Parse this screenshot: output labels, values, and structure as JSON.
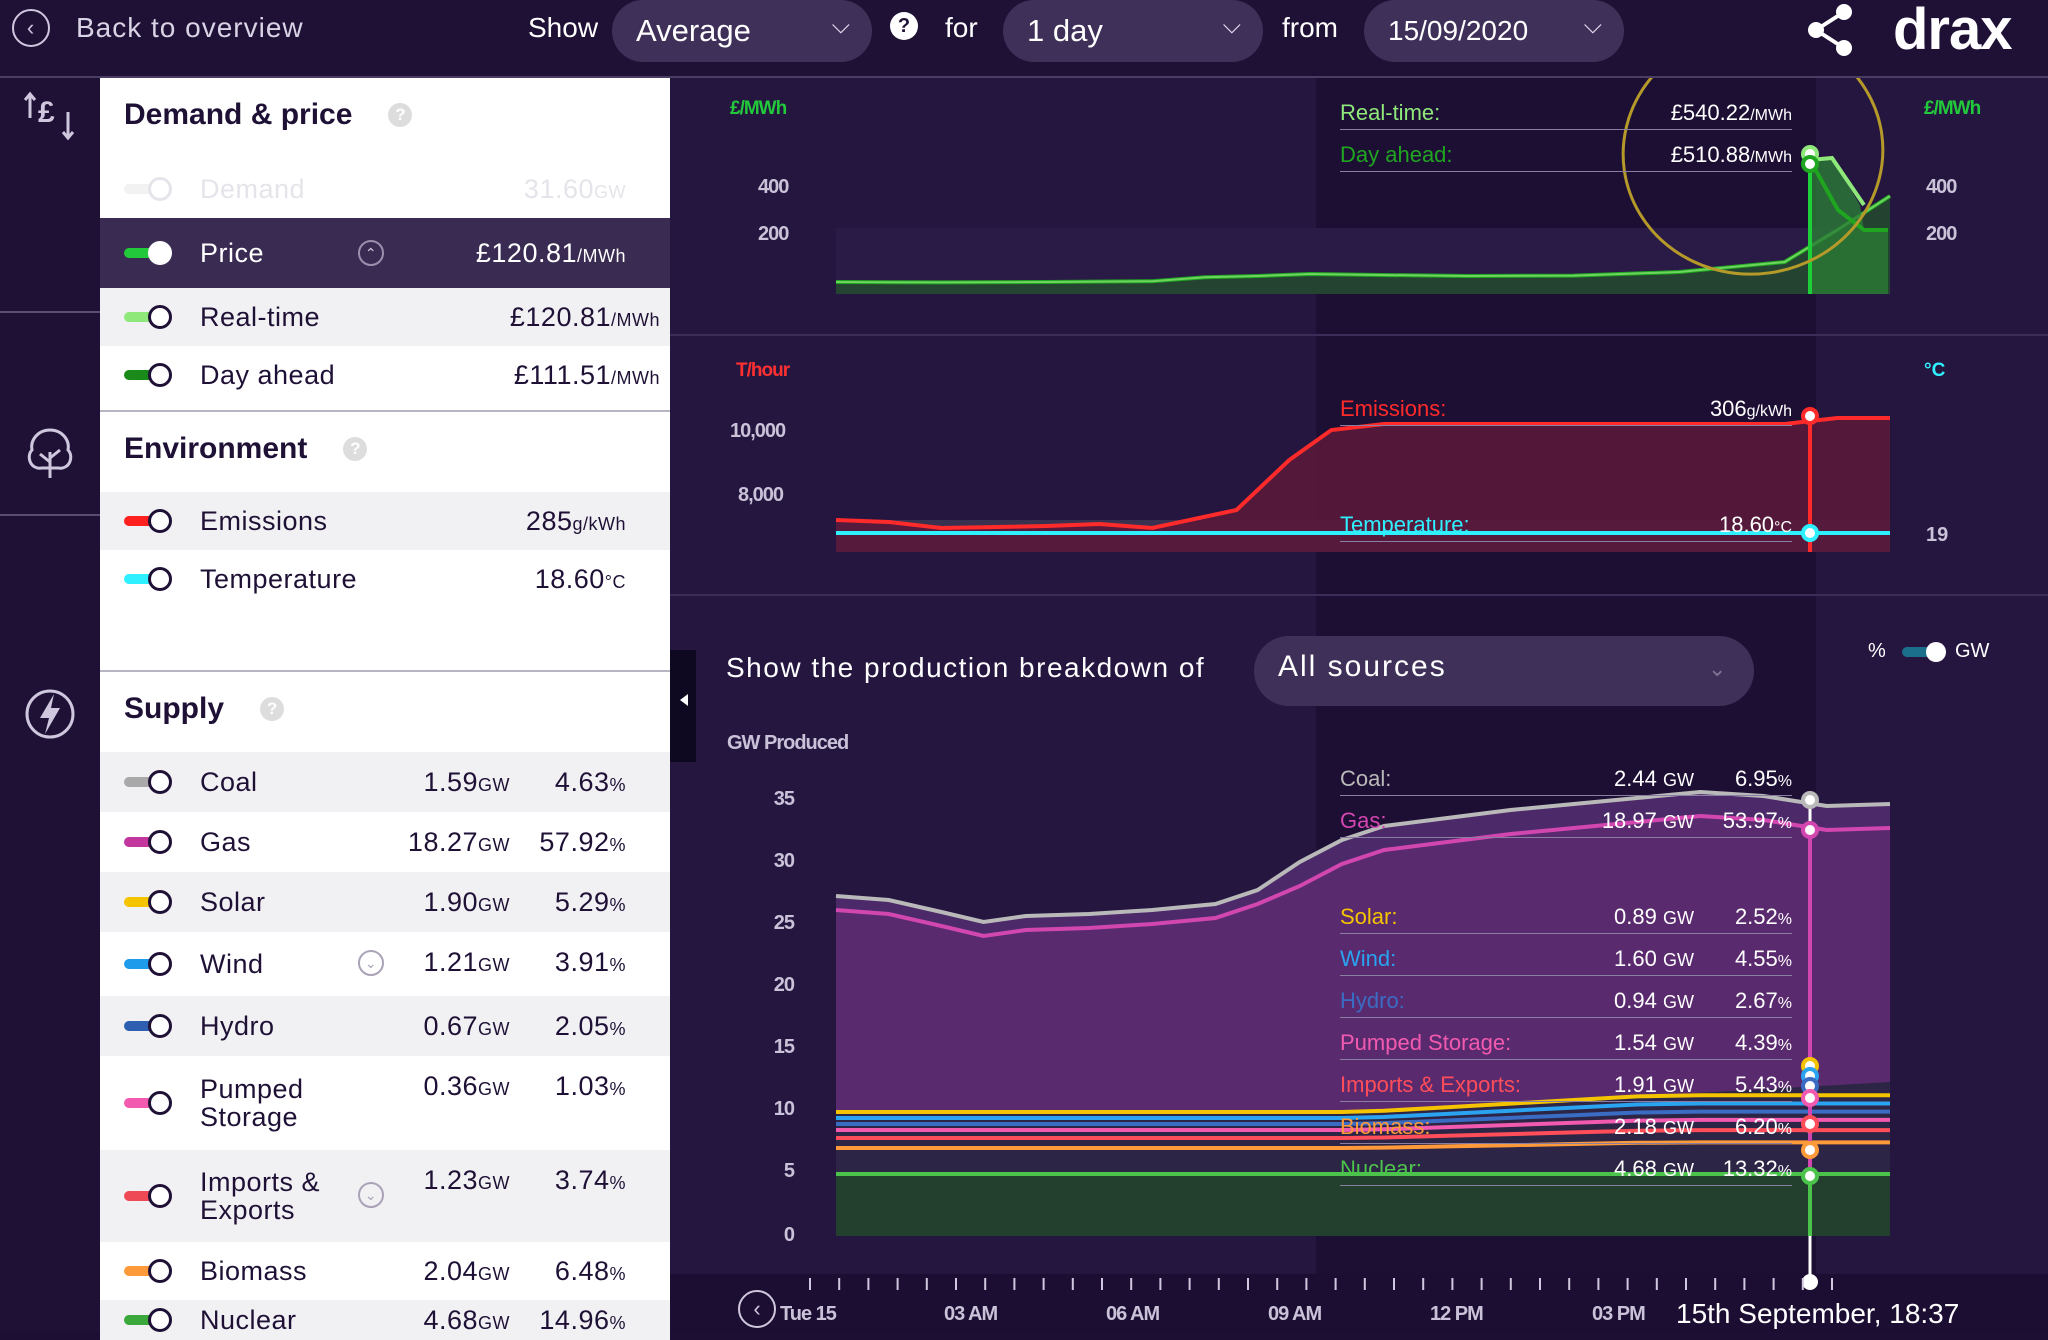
{
  "topbar": {
    "back_label": "Back to overview",
    "show_label": "Show",
    "show_value": "Average",
    "for_label": "for",
    "for_value": "1 day",
    "from_label": "from",
    "from_value": "15/09/2020",
    "brand": "drax"
  },
  "demand_price": {
    "title": "Demand & price",
    "rows": [
      {
        "label": "Demand",
        "value": "31.60",
        "unit": "GW",
        "color": "#eeeeee",
        "dim": true
      },
      {
        "label": "Price",
        "value": "£120.81",
        "unit": "/MWh",
        "color": "#22c93a",
        "selected": true
      },
      {
        "label": "Real-time",
        "value": "£120.81",
        "unit": "/MWh",
        "color": "#8fe87a"
      },
      {
        "label": "Day ahead",
        "value": "£111.51",
        "unit": "/MWh",
        "color": "#1a8a1a"
      }
    ]
  },
  "environment": {
    "title": "Environment",
    "rows": [
      {
        "label": "Emissions",
        "value": "285",
        "unit": "g/kWh",
        "color": "#ff2020"
      },
      {
        "label": "Temperature",
        "value": "18.60",
        "unit": "°C",
        "color": "#2ef0ff"
      }
    ]
  },
  "supply": {
    "title": "Supply",
    "rows": [
      {
        "label": "Coal",
        "gw": "1.59",
        "pct": "4.63",
        "color": "#a9a9a9"
      },
      {
        "label": "Gas",
        "gw": "18.27",
        "pct": "57.92",
        "color": "#c2369e"
      },
      {
        "label": "Solar",
        "gw": "1.90",
        "pct": "5.29",
        "color": "#f5c400"
      },
      {
        "label": "Wind",
        "gw": "1.21",
        "pct": "3.91",
        "color": "#1e9bea"
      },
      {
        "label": "Hydro",
        "gw": "0.67",
        "pct": "2.05",
        "color": "#2e5fb0"
      },
      {
        "label": "Pumped Storage",
        "label2": "Storage",
        "label1": "Pumped",
        "gw": "0.36",
        "pct": "1.03",
        "color": "#f25ab0"
      },
      {
        "label": "Imports & Exports",
        "label1": "Imports &",
        "label2": "Exports",
        "gw": "1.23",
        "pct": "3.74",
        "color": "#ee4a55"
      },
      {
        "label": "Biomass",
        "gw": "2.04",
        "pct": "6.48",
        "color": "#ff9a3a"
      },
      {
        "label": "Nuclear",
        "gw": "4.68",
        "pct": "14.96",
        "color": "#3aa83a"
      }
    ],
    "gw_unit": "GW",
    "pct_unit": "%"
  },
  "price_chart": {
    "unit_left": "£/MWh",
    "unit_right": "£/MWh",
    "ticks_left": [
      "400",
      "200"
    ],
    "ticks_right": [
      "400",
      "200"
    ],
    "overlay": [
      {
        "label": "Real-time:",
        "value": "£540.22",
        "unit": "/MWh",
        "color": "#8fe87a"
      },
      {
        "label": "Day ahead:",
        "value": "£510.88",
        "unit": "/MWh",
        "color": "#1fa51f"
      }
    ]
  },
  "env_chart": {
    "unit_left": "T/hour",
    "unit_right": "°C",
    "ticks_left": [
      "10,000",
      "8,000"
    ],
    "tick_right": "19",
    "overlay": [
      {
        "label": "Emissions:",
        "value": "306",
        "unit": "g/kWh",
        "color": "#ff2a2a"
      },
      {
        "label": "Temperature:",
        "value": "18.60",
        "unit": "°C",
        "color": "#2ef0ff"
      }
    ]
  },
  "supply_chart": {
    "breakdown_label": "Show the production breakdown of",
    "breakdown_value": "All sources",
    "toggle_pct": "%",
    "toggle_gw": "GW",
    "ylabel": "GW Produced",
    "yticks": [
      "35",
      "30",
      "25",
      "20",
      "15",
      "10",
      "5",
      "0"
    ],
    "overlay": [
      {
        "label": "Coal:",
        "gw": "2.44",
        "pct": "6.95",
        "color": "#b9b9b9"
      },
      {
        "label": "Gas:",
        "gw": "18.97",
        "pct": "53.97",
        "color": "#d246b0"
      },
      {
        "label": "Solar:",
        "gw": "0.89",
        "pct": "2.52",
        "color": "#f5c400"
      },
      {
        "label": "Wind:",
        "gw": "1.60",
        "pct": "4.55",
        "color": "#2aa3f0"
      },
      {
        "label": "Hydro:",
        "gw": "0.94",
        "pct": "2.67",
        "color": "#3a6cc4"
      },
      {
        "label": "Pumped Storage:",
        "gw": "1.54",
        "pct": "4.39",
        "color": "#f25ab0"
      },
      {
        "label": "Imports & Exports:",
        "gw": "1.91",
        "pct": "5.43",
        "color": "#ff4d5a"
      },
      {
        "label": "Biomass:",
        "gw": "2.18",
        "pct": "6.20",
        "color": "#ff9a3a"
      },
      {
        "label": "Nuclear:",
        "gw": "4.68",
        "pct": "13.32",
        "color": "#4cc44c"
      }
    ],
    "gw_unit": "GW",
    "pct_unit": "%"
  },
  "timeline": {
    "labels": [
      "Tue 15",
      "03 AM",
      "06 AM",
      "09 AM",
      "12 PM",
      "03 PM"
    ],
    "current": "15th September, 18:37"
  }
}
